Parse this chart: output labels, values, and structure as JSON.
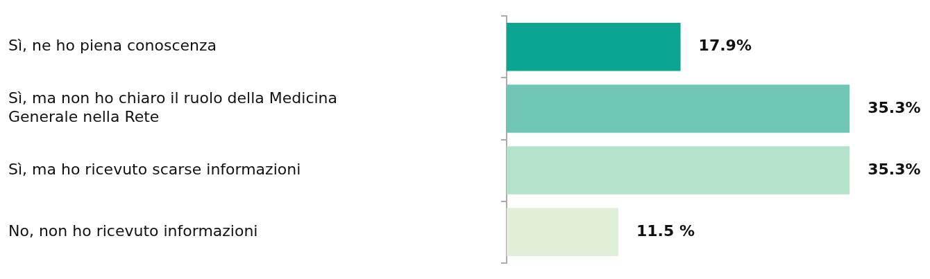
{
  "chart_data": {
    "type": "bar",
    "orientation": "horizontal",
    "categories": [
      "Sì, ne ho piena conoscenza",
      "Sì, ma non ho chiaro il ruolo della Medicina Generale nella Rete",
      "Sì, ma ho ricevuto scarse informazioni",
      "No, non ho ricevuto informazioni"
    ],
    "values": [
      17.9,
      35.3,
      35.3,
      11.5
    ],
    "colors": [
      "#0ca592",
      "#6fc6b3",
      "#b5e2cb",
      "#e0f0d8"
    ],
    "value_labels": [
      "17.9%",
      "35.3%",
      "35.3%",
      "11.5 %"
    ],
    "tick_labels": "y",
    "legend": false
  }
}
